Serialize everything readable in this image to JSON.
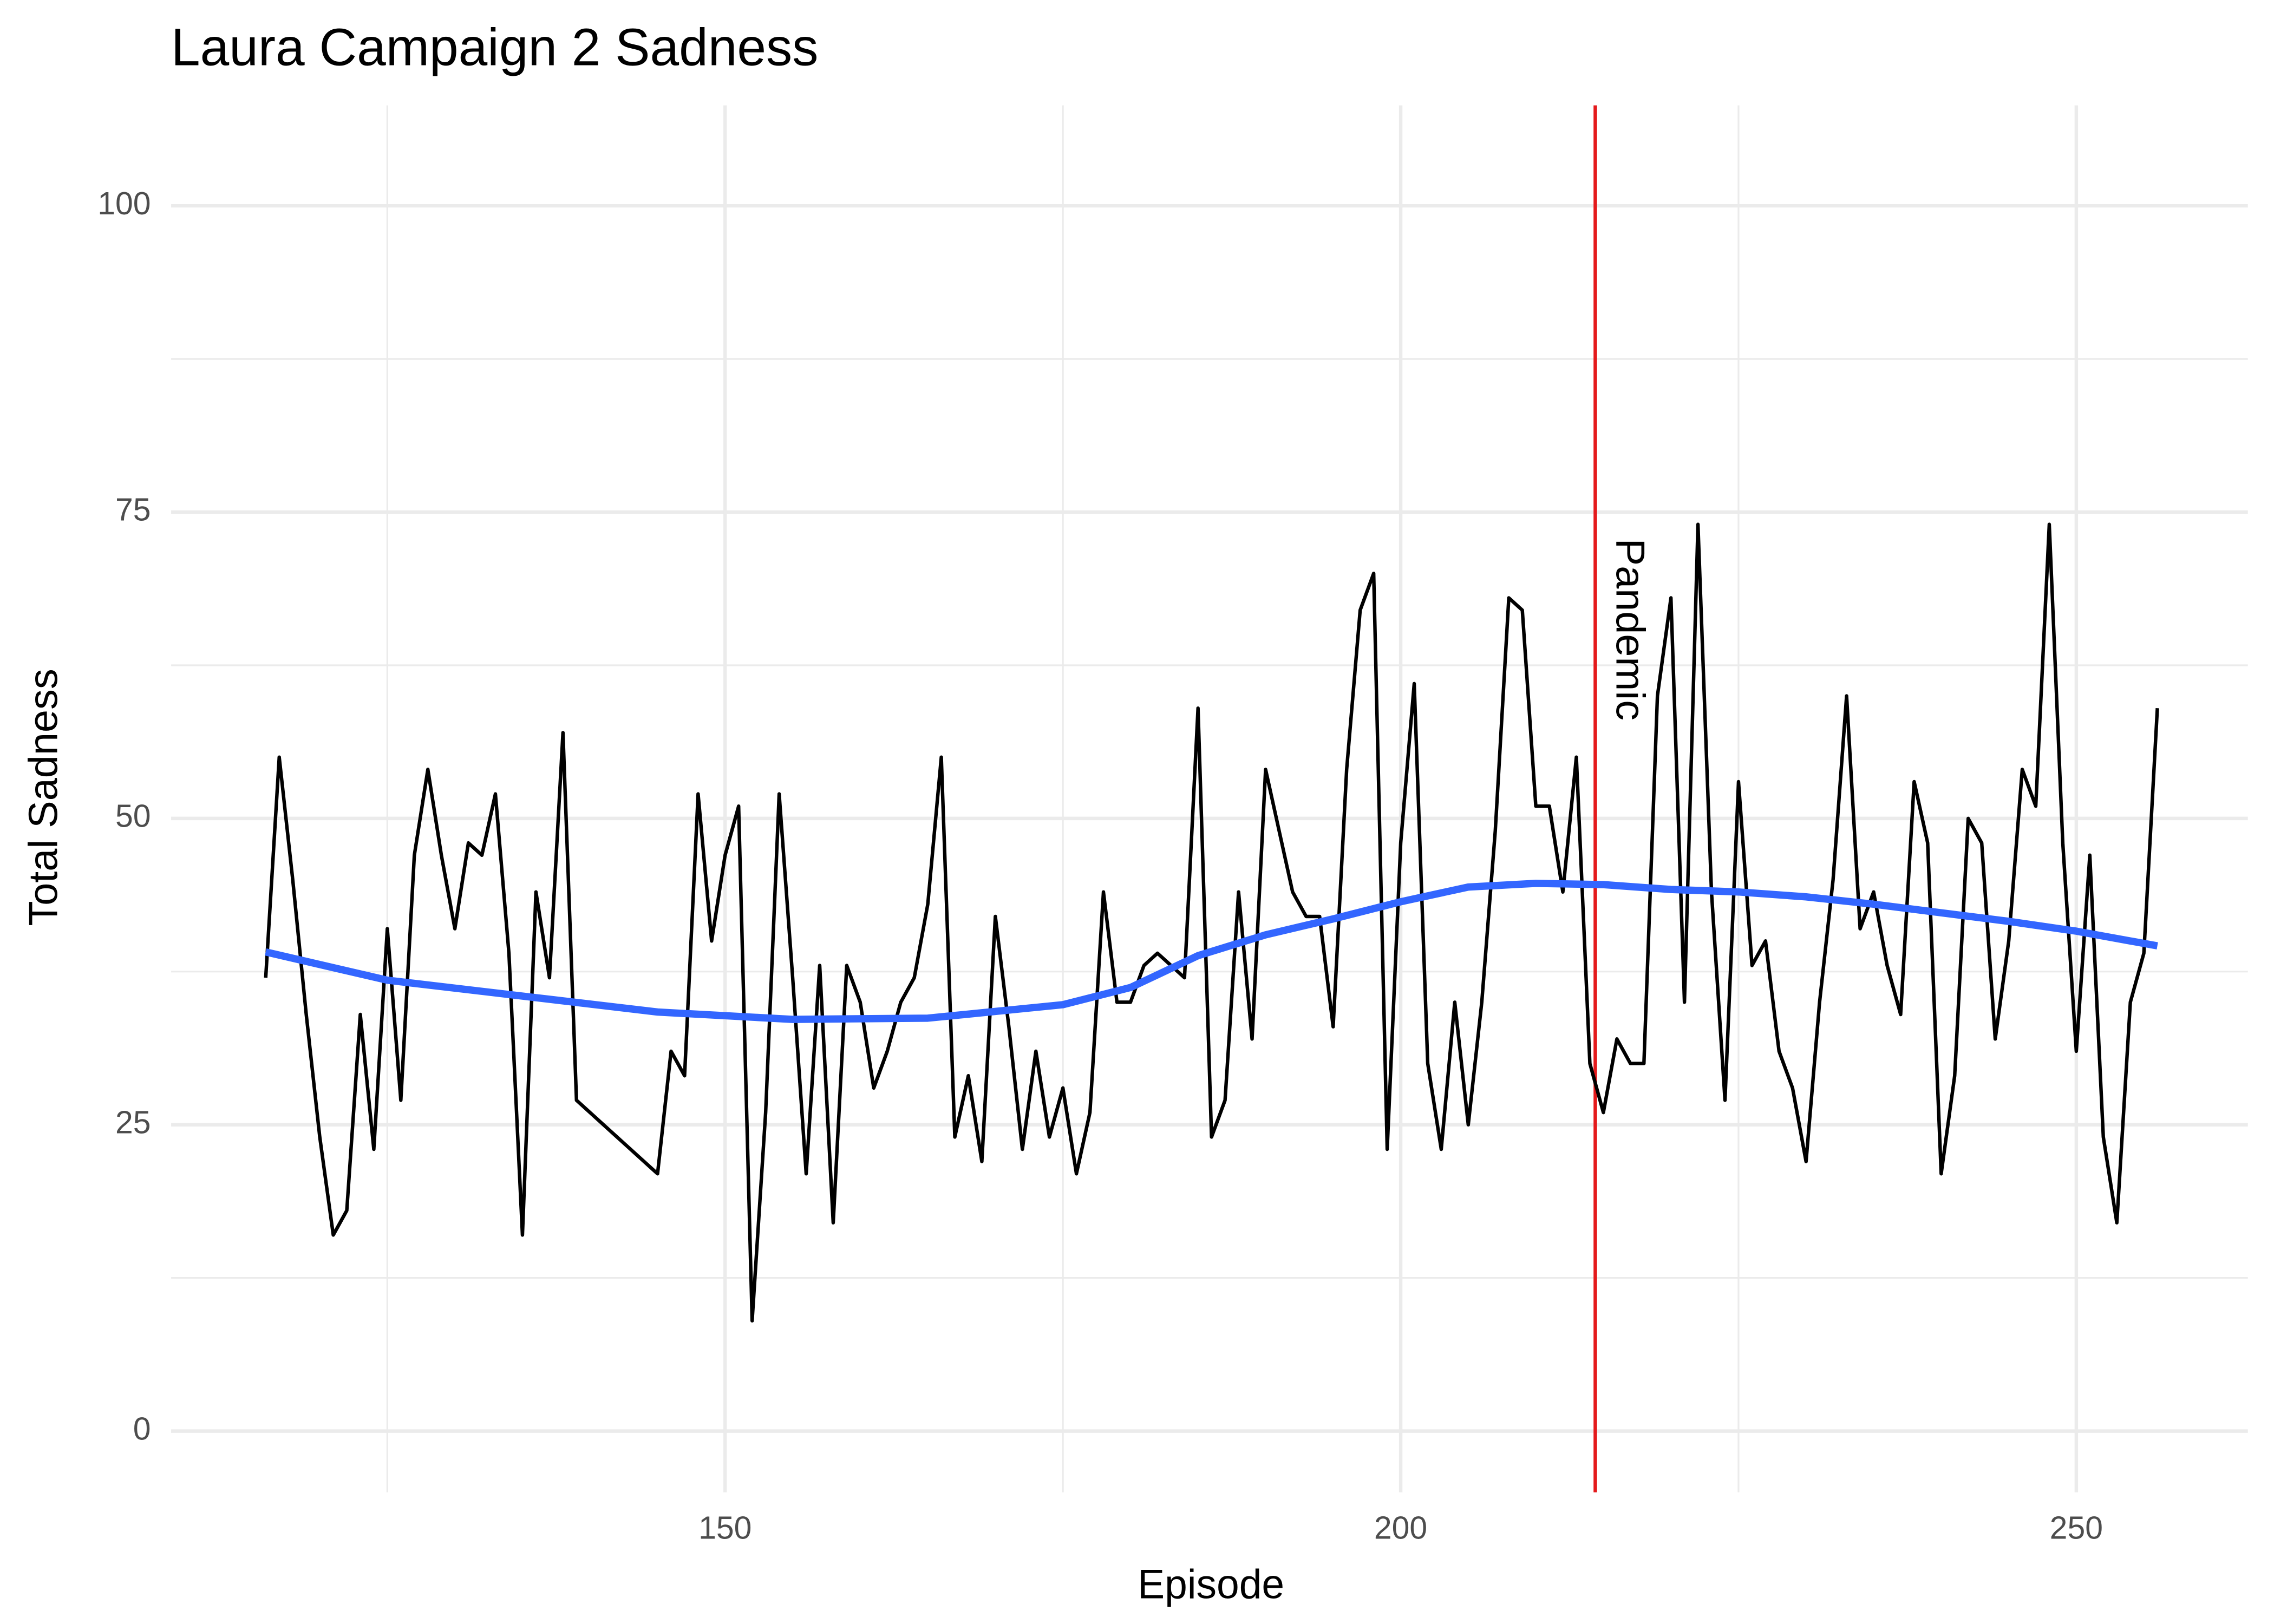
{
  "chart_data": {
    "type": "line",
    "title": "Laura Campaign 2 Sadness",
    "x_label": "Episode",
    "y_label": "Total Sadness",
    "series": [
      {
        "color": "#000000",
        "x": [
          116,
          117,
          118,
          119,
          120,
          121,
          122,
          123,
          124,
          125,
          126,
          127,
          128,
          129,
          130,
          131,
          132,
          133,
          134,
          135,
          136,
          137,
          138,
          139,
          145,
          146,
          147,
          148,
          149,
          150,
          151,
          152,
          153,
          154,
          155,
          156,
          157,
          158,
          159,
          160,
          161,
          162,
          163,
          164,
          165,
          166,
          167,
          168,
          169,
          170,
          171,
          172,
          173,
          174,
          175,
          176,
          177,
          178,
          179,
          180,
          181,
          182,
          183,
          184,
          185,
          186,
          187,
          188,
          189,
          190,
          191,
          192,
          193,
          194,
          195,
          196,
          197,
          198,
          199,
          200,
          201,
          202,
          203,
          204,
          205,
          206,
          207,
          208,
          209,
          210,
          211,
          212,
          213,
          214,
          215,
          216,
          217,
          218,
          219,
          220,
          221,
          222,
          223,
          224,
          225,
          226,
          227,
          228,
          229,
          230,
          231,
          232,
          233,
          234,
          235,
          236,
          237,
          238,
          239,
          240,
          241,
          242,
          243,
          244,
          245,
          246,
          247,
          248,
          249,
          250,
          251,
          252,
          253,
          254,
          255,
          256
        ],
        "values": [
          37,
          55,
          45,
          34,
          24,
          16,
          18,
          34,
          23,
          41,
          27,
          47,
          54,
          47,
          41,
          48,
          47,
          52,
          39,
          16,
          44,
          37,
          57,
          27,
          21,
          31,
          29,
          52,
          40,
          47,
          51,
          9,
          26,
          52,
          37,
          21,
          38,
          17,
          38,
          35,
          28,
          31,
          35,
          37,
          43,
          55,
          24,
          29,
          22,
          42,
          33,
          23,
          31,
          24,
          28,
          21,
          26,
          44,
          35,
          35,
          38,
          39,
          38,
          37,
          59,
          24,
          27,
          44,
          32,
          54,
          49,
          44,
          42,
          42,
          33,
          54,
          67,
          70,
          23,
          48,
          61,
          30,
          23,
          35,
          25,
          35,
          49,
          68,
          67,
          51,
          51,
          44,
          55,
          30,
          26,
          32,
          30,
          30,
          60,
          68,
          35,
          74,
          44,
          27,
          53,
          38,
          40,
          31,
          28,
          22,
          35,
          45,
          60,
          41,
          44,
          38,
          34,
          53,
          48,
          21,
          29,
          50,
          48,
          32,
          40,
          54,
          51,
          74,
          48,
          31,
          47,
          24,
          17,
          35,
          39,
          59
        ]
      },
      {
        "color": "#3366ff",
        "x": [
          116,
          125,
          135,
          145,
          155,
          165,
          175,
          180,
          185,
          190,
          195,
          200,
          205,
          210,
          215,
          220,
          225,
          230,
          235,
          240,
          245,
          250,
          256
        ],
        "values": [
          39.1,
          36.8,
          35.5,
          34.2,
          33.6,
          33.7,
          34.8,
          36.2,
          38.8,
          40.5,
          41.8,
          43.2,
          44.4,
          44.7,
          44.6,
          44.2,
          44.0,
          43.6,
          43.0,
          42.3,
          41.6,
          40.8,
          39.6
        ]
      }
    ],
    "annotations": [
      {
        "x": 214.4,
        "color": "#e41a1c",
        "text": "Pandemic"
      }
    ],
    "xlim": [
      109,
      262.7
    ],
    "ylim": [
      -5,
      108.2
    ],
    "xticks": [
      150,
      200,
      250
    ],
    "yticks": [
      0,
      25,
      50,
      75,
      100
    ],
    "grid": true
  }
}
